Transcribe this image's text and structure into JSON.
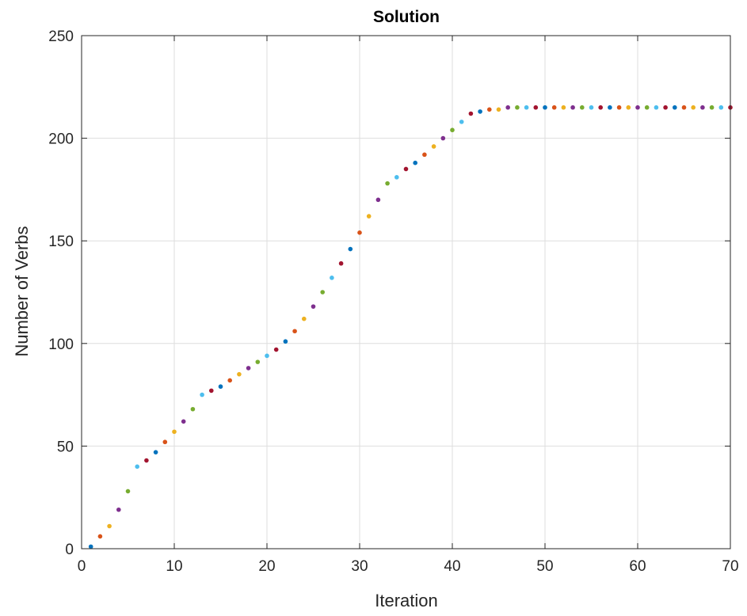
{
  "chart_data": {
    "type": "scatter",
    "title": "Solution",
    "xlabel": "Iteration",
    "ylabel": "Number of Verbs",
    "xlim": [
      0,
      70
    ],
    "ylim": [
      0,
      250
    ],
    "xticks": [
      "0",
      "10",
      "20",
      "30",
      "40",
      "50",
      "60",
      "70"
    ],
    "yticks": [
      "0",
      "50",
      "100",
      "150",
      "200",
      "250"
    ],
    "grid": true,
    "legend": "none",
    "point_colors": [
      "#0072bd",
      "#d95319",
      "#edb120",
      "#7e2f8e",
      "#77ac30",
      "#4dbeee",
      "#a2142f"
    ],
    "x": [
      1,
      2,
      3,
      4,
      5,
      6,
      7,
      8,
      9,
      10,
      11,
      12,
      13,
      14,
      15,
      16,
      17,
      18,
      19,
      20,
      21,
      22,
      23,
      24,
      25,
      26,
      27,
      28,
      29,
      30,
      31,
      32,
      33,
      34,
      35,
      36,
      37,
      38,
      39,
      40,
      41,
      42,
      43,
      44,
      45,
      46,
      47,
      48,
      49,
      50,
      51,
      52,
      53,
      54,
      55,
      56,
      57,
      58,
      59,
      60,
      61,
      62,
      63,
      64,
      65,
      66,
      67,
      68,
      69,
      70
    ],
    "y": [
      1,
      6,
      11,
      19,
      28,
      40,
      43,
      47,
      52,
      57,
      62,
      68,
      75,
      77,
      79,
      82,
      85,
      88,
      91,
      94,
      97,
      101,
      106,
      112,
      118,
      125,
      132,
      139,
      146,
      154,
      162,
      170,
      178,
      181,
      185,
      188,
      192,
      196,
      200,
      204,
      208,
      212,
      213,
      214,
      214,
      215,
      215,
      215,
      215,
      215,
      215,
      215,
      215,
      215,
      215,
      215,
      215,
      215,
      215,
      215,
      215,
      215,
      215,
      215,
      215,
      215,
      215,
      215,
      215,
      215
    ]
  }
}
